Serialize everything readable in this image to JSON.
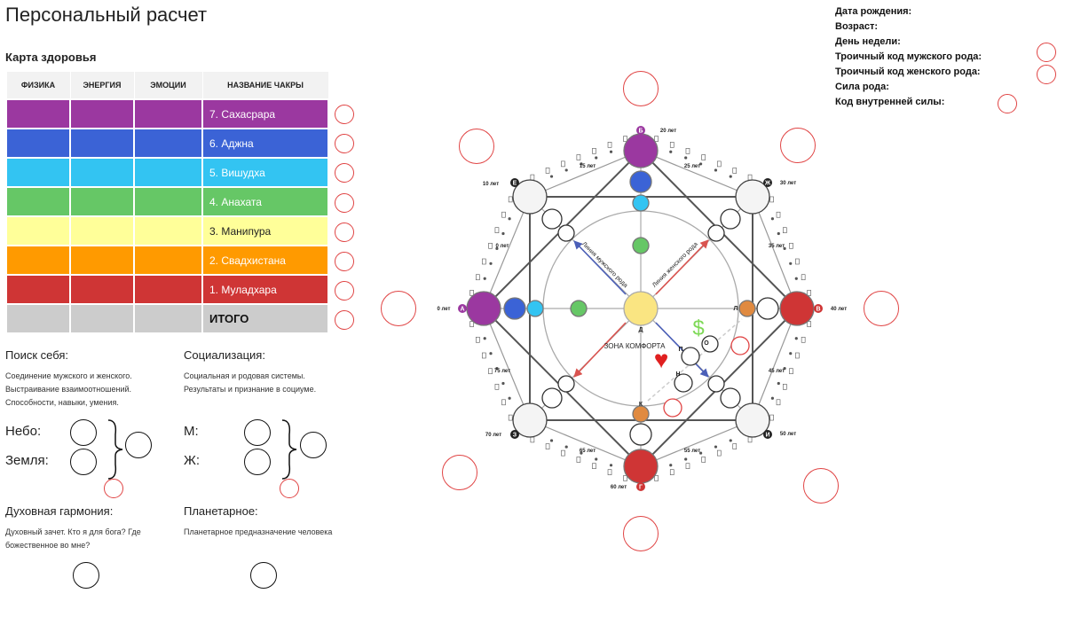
{
  "page": {
    "title": "Персональный расчет"
  },
  "health": {
    "title": "Карта здоровья",
    "headers": [
      "ФИЗИКА",
      "ЭНЕРГИЯ",
      "ЭМОЦИИ",
      "НАЗВАНИЕ ЧАКРЫ"
    ],
    "rows": [
      {
        "name": "7. Сахасрара",
        "color": "#9b38a0"
      },
      {
        "name": "6. Аджна",
        "color": "#3b63d6"
      },
      {
        "name": "5. Вишудха",
        "color": "#33c4f2"
      },
      {
        "name": "4. Анахата",
        "color": "#66c766"
      },
      {
        "name": "3. Манипура",
        "color": "#ffff99"
      },
      {
        "name": "2. Свадхистана",
        "color": "#ff9a00"
      },
      {
        "name": "1. Муладхара",
        "color": "#cf3535"
      },
      {
        "name": "ИТОГО",
        "color": "#cccccc"
      }
    ]
  },
  "sections": {
    "self": {
      "title": "Поиск себя:",
      "desc": [
        "Соединение мужского и женского.",
        "Выстраивание взаимоотношений.",
        "Способности, навыки, умения."
      ],
      "top_label": "Небо:",
      "bottom_label": "Земля:"
    },
    "social": {
      "title": "Социализация:",
      "desc": [
        "Социальная и родовая системы.",
        "Результаты и признание в социуме."
      ],
      "top_label": "М:",
      "bottom_label": "Ж:"
    },
    "spirit": {
      "title": "Духовная гармония:",
      "desc": [
        "Духовный зачет. Кто я для бога? Где",
        "божественное во мне?"
      ]
    },
    "planet": {
      "title": "Планетарное:",
      "desc": [
        "Планетарное предназначение человека"
      ]
    }
  },
  "info": {
    "birth_date": "Дата рождения:",
    "age": "Возраст:",
    "weekday": "День недели:",
    "male_code": "Троичный код мужского рода:",
    "female_code": "Троичный код женского рода:",
    "clan_power": "Сила рода:",
    "inner_code": "Код внутренней силы:"
  },
  "diagram": {
    "letters": {
      "A": "А",
      "B": "Б",
      "V": "В",
      "G": "Г",
      "D": "Д",
      "E": "Е",
      "Zh": "Ж",
      "Z": "З",
      "I": "И",
      "K": "К",
      "L": "Л",
      "N": "Н",
      "O": "О",
      "P": "П"
    },
    "ages": {
      "a0": "0 лет",
      "a10": "10 лет",
      "a15": "15 лет",
      "a20": "20 лет",
      "a25": "25 лет",
      "a30": "30 лет",
      "a35": "35 лет",
      "a40": "40 лет",
      "a45": "45 лет",
      "a50": "50 лет",
      "a55": "55 лет",
      "a60": "60 лет",
      "a65": "65 лет",
      "a70": "70 лет",
      "a75": "75 лет"
    },
    "male_line": "Линия мужского рода",
    "female_line": "Линия женского рода",
    "comfort_zone": "ЗОНА КОМФОРТА",
    "dollar": "$",
    "heart": "♥"
  }
}
